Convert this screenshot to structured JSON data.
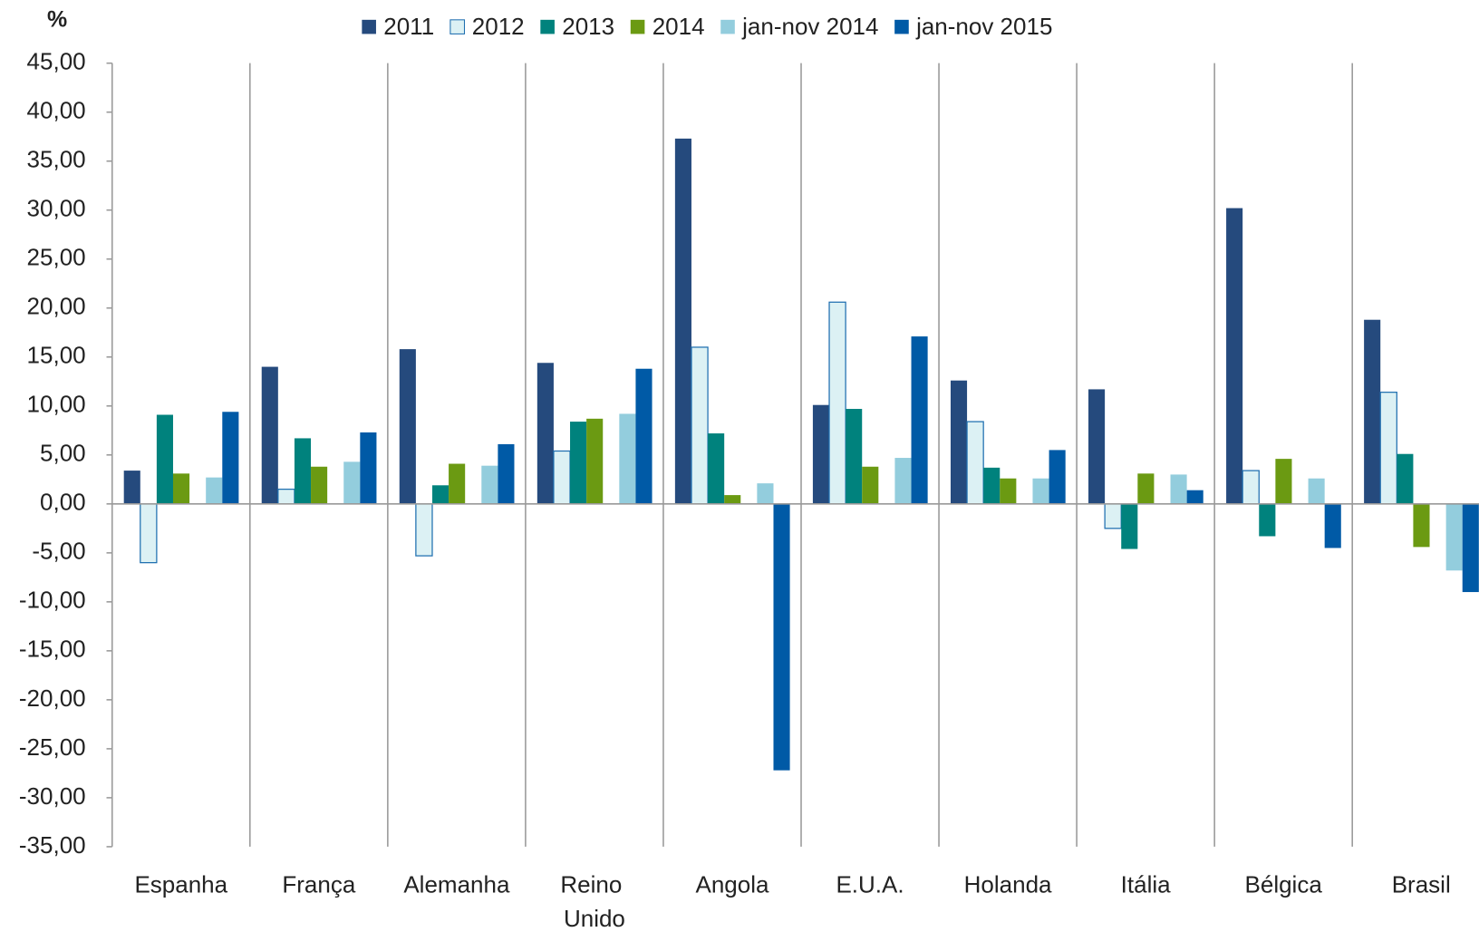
{
  "chart_data": {
    "type": "bar",
    "y_label": "%",
    "categories": [
      "Espanha",
      "França",
      "Alemanha",
      "Reino Unido",
      "Angola",
      "E.U.A.",
      "Holanda",
      "Itália",
      "Bélgica",
      "Brasil"
    ],
    "series": [
      {
        "name": "2011",
        "color": "#254a7d",
        "values": [
          3.4,
          14.0,
          15.8,
          14.4,
          37.3,
          10.1,
          12.6,
          11.7,
          30.2,
          18.8
        ]
      },
      {
        "name": "2012",
        "color": "#dcf1f4",
        "values": [
          -6.0,
          1.5,
          -5.3,
          5.4,
          16.0,
          20.6,
          8.4,
          -2.5,
          3.4,
          11.4
        ]
      },
      {
        "name": "2013",
        "color": "#00827d",
        "values": [
          9.1,
          6.7,
          1.9,
          8.4,
          7.2,
          9.7,
          3.7,
          -4.6,
          -3.3,
          5.1
        ]
      },
      {
        "name": "2014",
        "color": "#6b9a12",
        "values": [
          3.1,
          3.8,
          4.1,
          8.7,
          0.9,
          3.8,
          2.6,
          3.1,
          4.6,
          -4.4
        ]
      },
      {
        "name": "jan-nov 2014",
        "color": "#93cddd",
        "values": [
          2.7,
          4.3,
          3.9,
          9.2,
          2.1,
          4.7,
          2.6,
          3.0,
          2.6,
          -6.8
        ]
      },
      {
        "name": "jan-nov 2015",
        "color": "#005aa6",
        "values": [
          9.4,
          7.3,
          6.1,
          13.8,
          -27.2,
          17.1,
          5.5,
          1.4,
          -4.5,
          -9.0
        ]
      }
    ],
    "ylim": [
      -35,
      45
    ],
    "yticks": [
      {
        "value": -35,
        "label": "-35,00"
      },
      {
        "value": -30,
        "label": "-30,00"
      },
      {
        "value": -25,
        "label": "-25,00"
      },
      {
        "value": -20,
        "label": "-20,00"
      },
      {
        "value": -15,
        "label": "-15,00"
      },
      {
        "value": -10,
        "label": "-10,00"
      },
      {
        "value": -5,
        "label": "-5,00"
      },
      {
        "value": 0,
        "label": "0,00"
      },
      {
        "value": 5,
        "label": "5,00"
      },
      {
        "value": 10,
        "label": "10,00"
      },
      {
        "value": 15,
        "label": "15,00"
      },
      {
        "value": 20,
        "label": "20,00"
      },
      {
        "value": 25,
        "label": "25,00"
      },
      {
        "value": 30,
        "label": "30,00"
      },
      {
        "value": 35,
        "label": "35,00"
      },
      {
        "value": 40,
        "label": "40,00"
      },
      {
        "value": 45,
        "label": "45,00"
      }
    ],
    "legend": "top"
  }
}
